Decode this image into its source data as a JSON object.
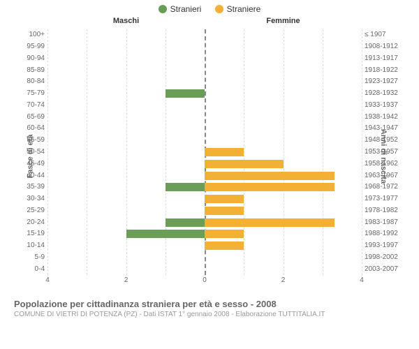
{
  "legend": {
    "male": {
      "label": "Stranieri",
      "color": "#6a9e58"
    },
    "female": {
      "label": "Straniere",
      "color": "#f2b134"
    }
  },
  "headers": {
    "left": "Maschi",
    "right": "Femmine"
  },
  "axis_titles": {
    "left": "Fasce di età",
    "right": "Anni di nascita"
  },
  "x_axis": {
    "max": 4,
    "ticks_left": [
      4,
      2,
      0
    ],
    "ticks_right": [
      0,
      2,
      4
    ]
  },
  "rows": [
    {
      "age": "100+",
      "birth": "≤ 1907",
      "m": 0,
      "f": 0
    },
    {
      "age": "95-99",
      "birth": "1908-1912",
      "m": 0,
      "f": 0
    },
    {
      "age": "90-94",
      "birth": "1913-1917",
      "m": 0,
      "f": 0
    },
    {
      "age": "85-89",
      "birth": "1918-1922",
      "m": 0,
      "f": 0
    },
    {
      "age": "80-84",
      "birth": "1923-1927",
      "m": 0,
      "f": 0
    },
    {
      "age": "75-79",
      "birth": "1928-1932",
      "m": 1,
      "f": 0
    },
    {
      "age": "70-74",
      "birth": "1933-1937",
      "m": 0,
      "f": 0
    },
    {
      "age": "65-69",
      "birth": "1938-1942",
      "m": 0,
      "f": 0
    },
    {
      "age": "60-64",
      "birth": "1943-1947",
      "m": 0,
      "f": 0
    },
    {
      "age": "55-59",
      "birth": "1948-1952",
      "m": 0,
      "f": 0
    },
    {
      "age": "50-54",
      "birth": "1953-1957",
      "m": 0,
      "f": 1
    },
    {
      "age": "45-49",
      "birth": "1958-1962",
      "m": 0,
      "f": 2
    },
    {
      "age": "40-44",
      "birth": "1963-1967",
      "m": 0,
      "f": 3.3
    },
    {
      "age": "35-39",
      "birth": "1968-1972",
      "m": 1,
      "f": 3.3
    },
    {
      "age": "30-34",
      "birth": "1973-1977",
      "m": 0,
      "f": 1
    },
    {
      "age": "25-29",
      "birth": "1978-1982",
      "m": 0,
      "f": 1
    },
    {
      "age": "20-24",
      "birth": "1983-1987",
      "m": 1,
      "f": 3.3
    },
    {
      "age": "15-19",
      "birth": "1988-1992",
      "m": 2,
      "f": 1
    },
    {
      "age": "10-14",
      "birth": "1993-1997",
      "m": 0,
      "f": 1
    },
    {
      "age": "5-9",
      "birth": "1998-2002",
      "m": 0,
      "f": 0
    },
    {
      "age": "0-4",
      "birth": "2003-2007",
      "m": 0,
      "f": 0
    }
  ],
  "colors": {
    "male_bar": "#6a9e58",
    "female_bar": "#f2b134",
    "grid": "#dddddd",
    "center": "#888888"
  },
  "title": "Popolazione per cittadinanza straniera per età e sesso - 2008",
  "subtitle": "COMUNE DI VIETRI DI POTENZA (PZ) - Dati ISTAT 1° gennaio 2008 - Elaborazione TUTTITALIA.IT"
}
